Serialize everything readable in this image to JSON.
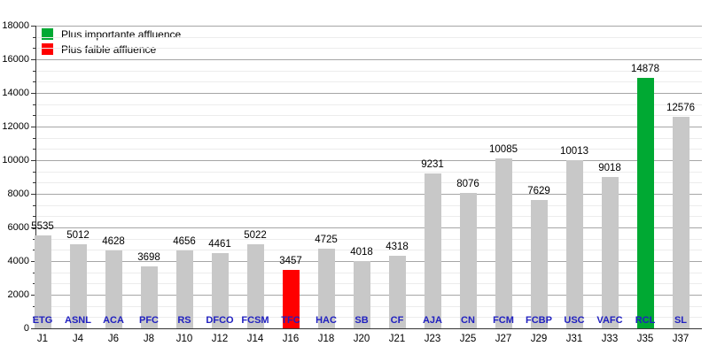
{
  "colors": {
    "background": "#ffffff",
    "bar_default": "#c8c8c8",
    "bar_max": "#00a933",
    "bar_min": "#ff0000",
    "team_label": "#2020c0",
    "value_label": "#000000",
    "grid_major": "#a6a6a6",
    "grid_minor": "#ececec",
    "axis": "#333333"
  },
  "legend": {
    "max_label": "Plus importante affluence",
    "min_label": "Plus faible affluence"
  },
  "chart_data": {
    "type": "bar",
    "title": "",
    "xlabel": "",
    "ylabel": "",
    "ylim": [
      0,
      18000
    ],
    "y_major_interval": 2000,
    "y_minor_divisions": 3,
    "grid": true,
    "legend_position": "top-left",
    "y_tick_labels": [
      "0",
      "2000",
      "4000",
      "6000",
      "8000",
      "10000",
      "12000",
      "14000",
      "16000",
      "18000"
    ],
    "categories": [
      "J1",
      "J4",
      "J6",
      "J8",
      "J10",
      "J12",
      "J14",
      "J16",
      "J18",
      "J20",
      "J21",
      "J23",
      "J25",
      "J27",
      "J29",
      "J31",
      "J33",
      "J35",
      "J37"
    ],
    "bars": [
      {
        "team": "ETG",
        "matchday": "J1",
        "value": 5535,
        "role": "default"
      },
      {
        "team": "ASNL",
        "matchday": "J4",
        "value": 5012,
        "role": "default"
      },
      {
        "team": "ACA",
        "matchday": "J6",
        "value": 4628,
        "role": "default"
      },
      {
        "team": "PFC",
        "matchday": "J8",
        "value": 3698,
        "role": "default"
      },
      {
        "team": "RS",
        "matchday": "J10",
        "value": 4656,
        "role": "default"
      },
      {
        "team": "DFCO",
        "matchday": "J12",
        "value": 4461,
        "role": "default"
      },
      {
        "team": "FCSM",
        "matchday": "J14",
        "value": 5022,
        "role": "default"
      },
      {
        "team": "TFC",
        "matchday": "J16",
        "value": 3457,
        "role": "min"
      },
      {
        "team": "HAC",
        "matchday": "J18",
        "value": 4725,
        "role": "default"
      },
      {
        "team": "SB",
        "matchday": "J20",
        "value": 4018,
        "role": "default"
      },
      {
        "team": "CF",
        "matchday": "J21",
        "value": 4318,
        "role": "default"
      },
      {
        "team": "AJA",
        "matchday": "J23",
        "value": 9231,
        "role": "default"
      },
      {
        "team": "CN",
        "matchday": "J25",
        "value": 8076,
        "role": "default"
      },
      {
        "team": "FCM",
        "matchday": "J27",
        "value": 10085,
        "role": "default"
      },
      {
        "team": "FCBP",
        "matchday": "J29",
        "value": 7629,
        "role": "default"
      },
      {
        "team": "USC",
        "matchday": "J31",
        "value": 10013,
        "role": "default"
      },
      {
        "team": "VAFC",
        "matchday": "J33",
        "value": 9018,
        "role": "default"
      },
      {
        "team": "RCL",
        "matchday": "J35",
        "value": 14878,
        "role": "max"
      },
      {
        "team": "SL",
        "matchday": "J37",
        "value": 12576,
        "role": "default"
      }
    ]
  }
}
